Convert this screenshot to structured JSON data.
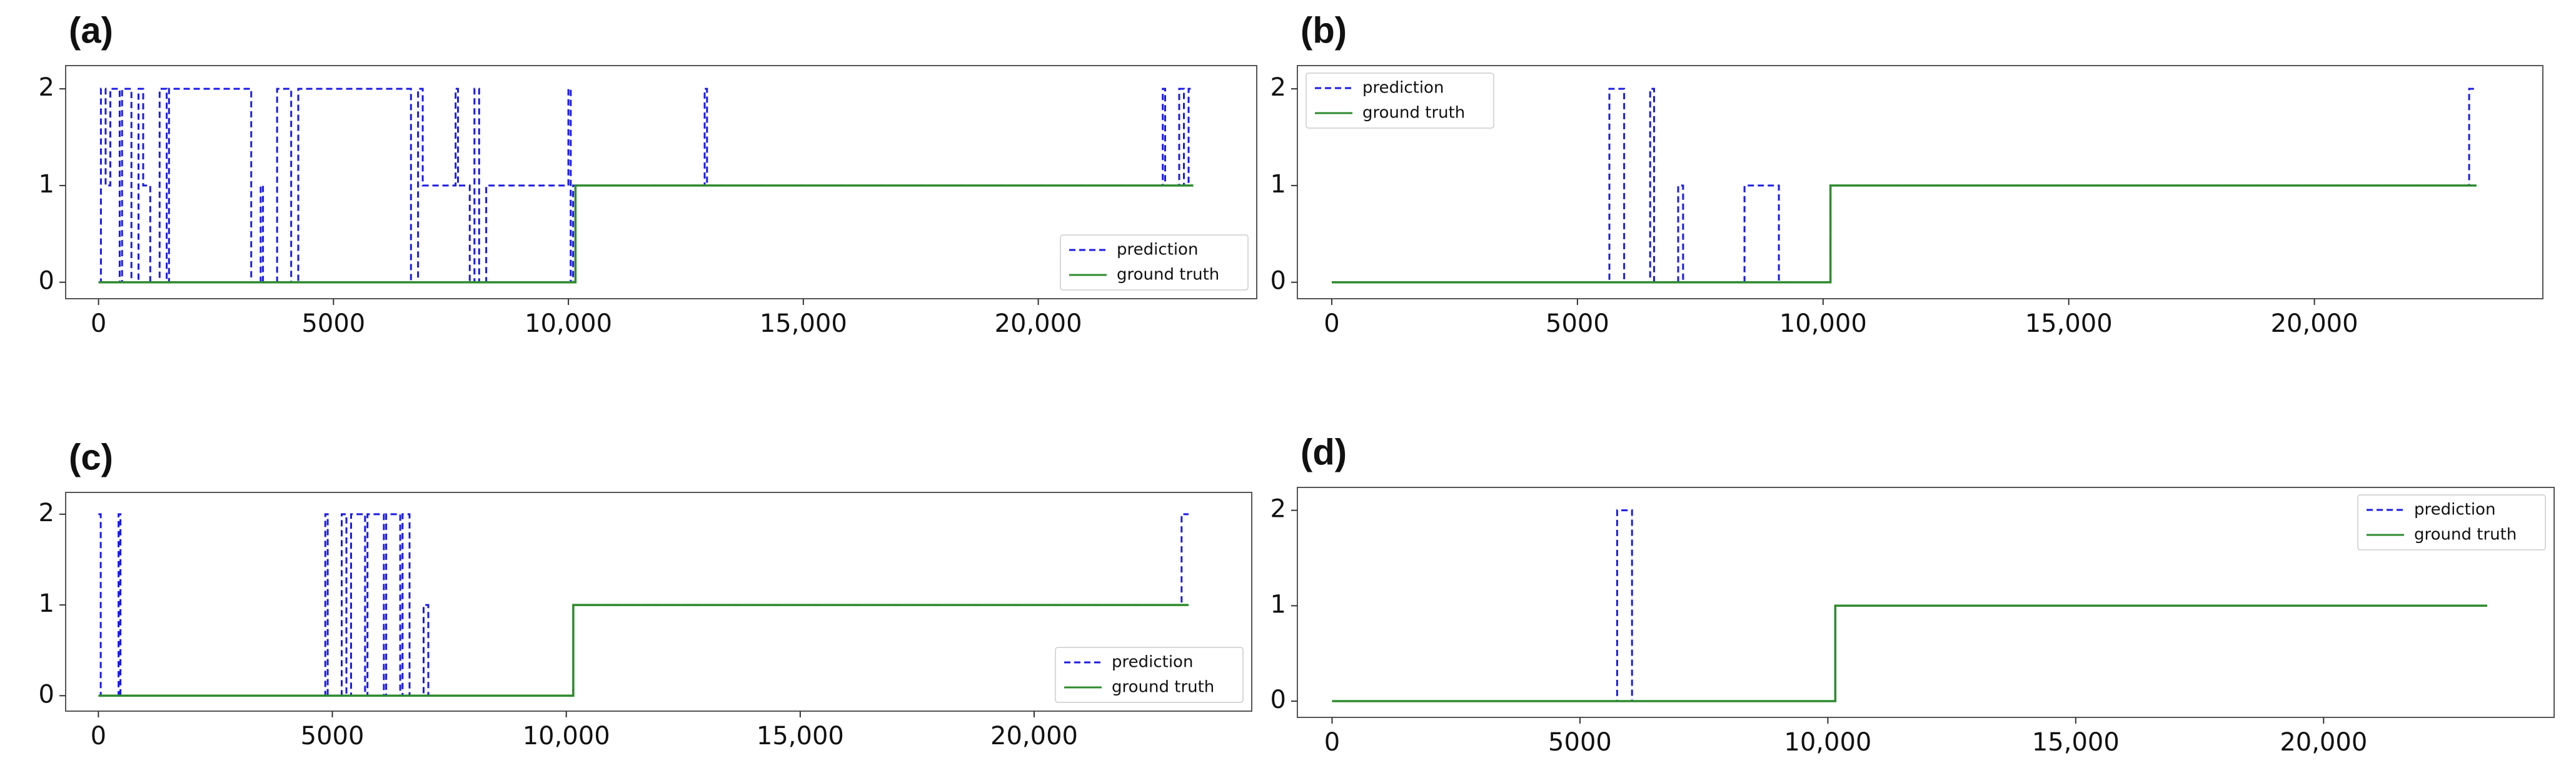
{
  "chart_data": [
    {
      "type": "line",
      "label": "(a)",
      "legend": "lower right",
      "xlim": [
        -700,
        24650
      ],
      "ylim": [
        -0.17,
        2.24
      ],
      "xticks": [
        0,
        5000,
        {
          "value": 10000,
          "label": "10,000"
        },
        {
          "value": 15000,
          "label": "15,000"
        },
        {
          "value": 20000,
          "label": "20,000"
        }
      ],
      "yticks": [
        0,
        1,
        2
      ],
      "series": [
        {
          "name": "prediction",
          "color": "#1a1aee",
          "dashed": true,
          "x": [
            0,
            50,
            50,
            150,
            150,
            250,
            250,
            450,
            450,
            500,
            500,
            700,
            700,
            850,
            850,
            950,
            950,
            1100,
            1100,
            1300,
            1300,
            1450,
            1450,
            1500,
            1500,
            3250,
            3250,
            3450,
            3450,
            3500,
            3500,
            3800,
            3800,
            4100,
            4100,
            4250,
            4250,
            6650,
            6650,
            6800,
            6800,
            6900,
            6900,
            7600,
            7600,
            7650,
            7650,
            7900,
            7900,
            8000,
            8000,
            8100,
            8100,
            8250,
            8250,
            10000,
            10000,
            10050,
            10050,
            10100,
            10100,
            12900,
            12900,
            12950,
            12950,
            22650,
            22650,
            22700,
            22700,
            23000,
            23000,
            23100,
            23100,
            23200,
            23200,
            23300
          ],
          "values": [
            0,
            0,
            2,
            2,
            1,
            1,
            2,
            2,
            0,
            0,
            2,
            2,
            0,
            0,
            2,
            2,
            1,
            1,
            0,
            0,
            2,
            2,
            0,
            0,
            2,
            2,
            0,
            0,
            1,
            1,
            0,
            0,
            2,
            2,
            0,
            0,
            2,
            2,
            0,
            0,
            2,
            2,
            1,
            1,
            2,
            2,
            1,
            1,
            0,
            0,
            2,
            2,
            0,
            0,
            1,
            1,
            2,
            2,
            0,
            0,
            1,
            1,
            2,
            2,
            1,
            1,
            2,
            2,
            1,
            1,
            2,
            2,
            1,
            1,
            2,
            2
          ]
        },
        {
          "name": "ground truth",
          "color": "#2e8b2e",
          "dashed": false,
          "x": [
            0,
            10150,
            10150,
            23300
          ],
          "values": [
            0,
            0,
            1,
            1
          ]
        }
      ]
    },
    {
      "type": "line",
      "label": "(b)",
      "legend": "upper left",
      "xlim": [
        -700,
        24650
      ],
      "ylim": [
        -0.17,
        2.24
      ],
      "xticks": [
        0,
        5000,
        {
          "value": 10000,
          "label": "10,000"
        },
        {
          "value": 15000,
          "label": "15,000"
        },
        {
          "value": 20000,
          "label": "20,000"
        }
      ],
      "yticks": [
        0,
        1,
        2
      ],
      "series": [
        {
          "name": "prediction",
          "color": "#1a1aee",
          "dashed": true,
          "x": [
            0,
            5650,
            5650,
            5950,
            5950,
            6480,
            6480,
            6560,
            6560,
            7050,
            7050,
            7150,
            7150,
            8400,
            8400,
            9100,
            9100,
            10150,
            10150,
            23150,
            23150,
            23300
          ],
          "values": [
            0,
            0,
            2,
            2,
            0,
            0,
            2,
            2,
            0,
            0,
            1,
            1,
            0,
            0,
            1,
            1,
            0,
            0,
            1,
            1,
            2,
            2
          ]
        },
        {
          "name": "ground truth",
          "color": "#2e8b2e",
          "dashed": false,
          "x": [
            0,
            10150,
            10150,
            23300
          ],
          "values": [
            0,
            0,
            1,
            1
          ]
        }
      ]
    },
    {
      "type": "line",
      "label": "(c)",
      "legend": "lower right",
      "xlim": [
        -700,
        24650
      ],
      "ylim": [
        -0.17,
        2.24
      ],
      "xticks": [
        0,
        5000,
        {
          "value": 10000,
          "label": "10,000"
        },
        {
          "value": 15000,
          "label": "15,000"
        },
        {
          "value": 20000,
          "label": "20,000"
        }
      ],
      "yticks": [
        0,
        1,
        2
      ],
      "series": [
        {
          "name": "prediction",
          "color": "#1a1aee",
          "dashed": true,
          "x": [
            0,
            50,
            50,
            430,
            430,
            470,
            470,
            4850,
            4850,
            4900,
            4900,
            5200,
            5200,
            5300,
            5300,
            5400,
            5400,
            5700,
            5700,
            5750,
            5750,
            6100,
            6100,
            6150,
            6150,
            6450,
            6450,
            6500,
            6500,
            6650,
            6650,
            6950,
            6950,
            7050,
            7050,
            10150,
            10150,
            23150,
            23150,
            23300
          ],
          "values": [
            2,
            2,
            0,
            0,
            2,
            2,
            0,
            0,
            2,
            2,
            0,
            0,
            2,
            2,
            0,
            0,
            2,
            2,
            0,
            0,
            2,
            2,
            0,
            0,
            2,
            2,
            0,
            0,
            2,
            2,
            0,
            0,
            1,
            1,
            0,
            0,
            1,
            1,
            2,
            2
          ]
        },
        {
          "name": "ground truth",
          "color": "#2e8b2e",
          "dashed": false,
          "x": [
            0,
            10150,
            10150,
            23300
          ],
          "values": [
            0,
            0,
            1,
            1
          ]
        }
      ]
    },
    {
      "type": "line",
      "label": "(d)",
      "legend": "upper right",
      "xlim": [
        -700,
        24650
      ],
      "ylim": [
        -0.17,
        2.24
      ],
      "xticks": [
        0,
        5000,
        {
          "value": 10000,
          "label": "10,000"
        },
        {
          "value": 15000,
          "label": "15,000"
        },
        {
          "value": 20000,
          "label": "20,000"
        }
      ],
      "yticks": [
        0,
        1,
        2
      ],
      "series": [
        {
          "name": "prediction",
          "color": "#1a1aee",
          "dashed": true,
          "x": [
            0,
            5750,
            5750,
            6050,
            6050,
            10150,
            10150,
            23300
          ],
          "values": [
            0,
            0,
            2,
            2,
            0,
            0,
            1,
            1
          ]
        },
        {
          "name": "ground truth",
          "color": "#2e8b2e",
          "dashed": false,
          "x": [
            0,
            10150,
            10150,
            23300
          ],
          "values": [
            0,
            0,
            1,
            1
          ]
        }
      ]
    }
  ]
}
